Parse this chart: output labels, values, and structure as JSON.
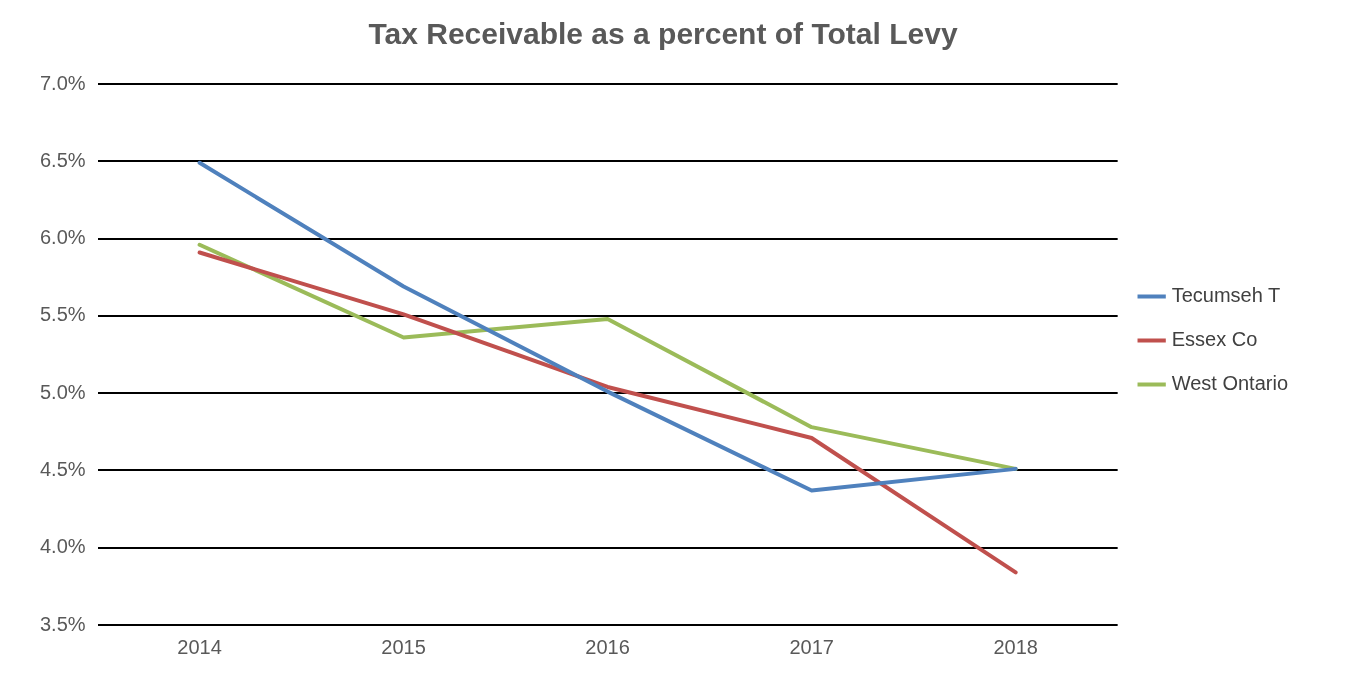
{
  "chart_data": {
    "type": "line",
    "title": "Tax Receivable as a percent of Total Levy",
    "categories": [
      "2014",
      "2015",
      "2016",
      "2017",
      "2018"
    ],
    "series": [
      {
        "name": "Tecumseh T",
        "color": "#4f81bd",
        "values": [
          6.49,
          5.69,
          5.01,
          4.37,
          4.51
        ]
      },
      {
        "name": "Essex Co",
        "color": "#c0504d",
        "values": [
          5.91,
          5.51,
          5.04,
          4.71,
          3.84
        ]
      },
      {
        "name": "West Ontario",
        "color": "#9bbb59",
        "values": [
          5.96,
          5.36,
          5.48,
          4.78,
          4.51
        ]
      }
    ],
    "ylim": [
      3.5,
      7.0
    ],
    "yticks": [
      {
        "value": 3.5,
        "label": "3.5%"
      },
      {
        "value": 4.0,
        "label": "4.0%"
      },
      {
        "value": 4.5,
        "label": "4.5%"
      },
      {
        "value": 5.0,
        "label": "5.0%"
      },
      {
        "value": 5.5,
        "label": "5.5%"
      },
      {
        "value": 6.0,
        "label": "6.0%"
      },
      {
        "value": 6.5,
        "label": "6.5%"
      },
      {
        "value": 7.0,
        "label": "7.0%"
      }
    ],
    "grid": "y",
    "legend": "right",
    "marker": "none",
    "line_style": "solid"
  }
}
